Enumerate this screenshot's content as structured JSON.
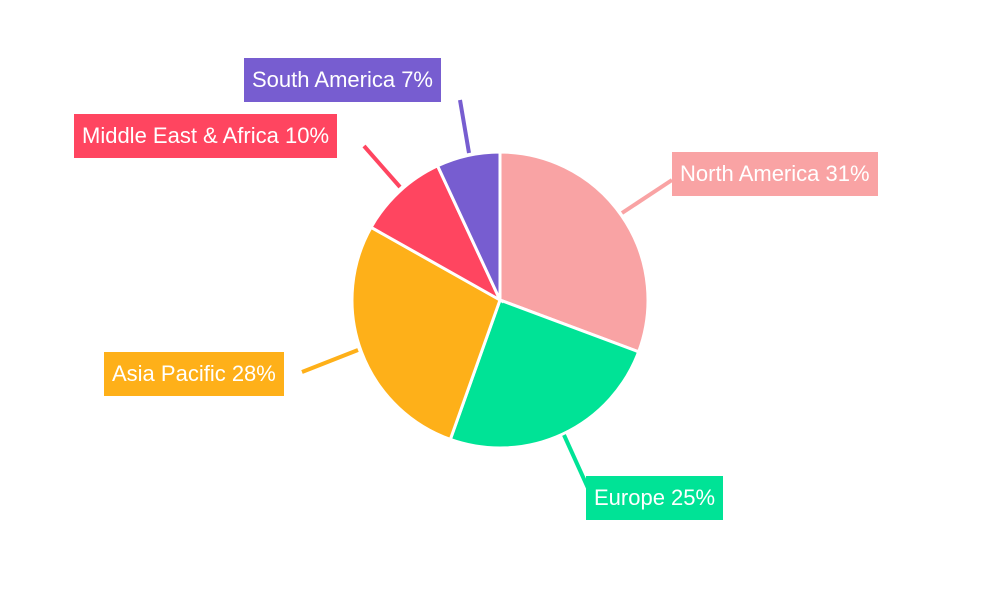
{
  "chart_data": {
    "type": "pie",
    "title": "",
    "start_angle": "12 o'clock, clockwise",
    "legend": "none",
    "slices": [
      {
        "label": "North America",
        "value": 31,
        "text": "North America 31%",
        "color": "#F9A3A4"
      },
      {
        "label": "Europe",
        "value": 25,
        "text": "Europe 25%",
        "color": "#00E396"
      },
      {
        "label": "Asia Pacific",
        "value": 28,
        "text": "Asia Pacific 28%",
        "color": "#FEB019"
      },
      {
        "label": "Middle East & Africa",
        "value": 10,
        "text": "Middle East & Africa 10%",
        "color": "#FF4560"
      },
      {
        "label": "South America",
        "value": 7,
        "text": "South America 7%",
        "color": "#775DD0"
      }
    ]
  }
}
